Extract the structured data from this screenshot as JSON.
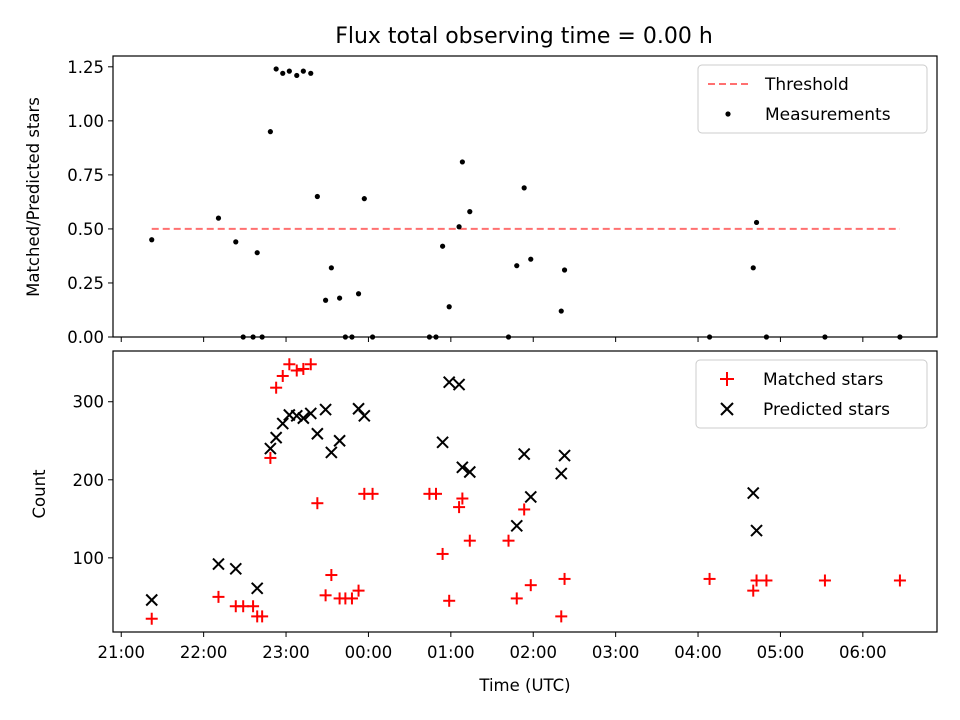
{
  "title": "Flux total observing time = 0.00 h",
  "colors": {
    "threshold": "#ff7070",
    "matched": "#ff0000",
    "predicted": "#000000",
    "measure": "#000000"
  },
  "chart_data": [
    {
      "type": "scatter",
      "panel": "top",
      "ylabel": "Matched/Predicted stars",
      "xlim_hours": [
        20.9,
        30.9
      ],
      "ylim": [
        0,
        1.3
      ],
      "yticks": [
        0,
        0.25,
        0.5,
        0.75,
        1.0,
        1.25
      ],
      "ytick_labels": [
        "0.00",
        "0.25",
        "0.50",
        "0.75",
        "1.00",
        "1.25"
      ],
      "legend": [
        "Threshold",
        "Measurements"
      ],
      "threshold": {
        "x": [
          21.37,
          30.45
        ],
        "y": 0.5
      },
      "measurements": {
        "x": [
          21.37,
          22.18,
          22.39,
          22.48,
          22.6,
          22.65,
          22.71,
          22.81,
          22.88,
          22.96,
          23.04,
          23.13,
          23.21,
          23.3,
          23.38,
          23.48,
          23.55,
          23.65,
          23.72,
          23.8,
          23.88,
          23.95,
          24.05,
          24.74,
          24.82,
          24.9,
          24.98,
          25.1,
          25.14,
          25.23,
          25.7,
          25.8,
          25.89,
          25.97,
          26.34,
          26.38,
          28.14,
          28.67,
          28.71,
          28.83,
          29.54,
          30.45
        ],
        "y": [
          0.45,
          0.55,
          0.44,
          0.0,
          0.0,
          0.39,
          0.0,
          0.95,
          1.24,
          1.22,
          1.23,
          1.21,
          1.23,
          1.22,
          0.65,
          0.17,
          0.32,
          0.18,
          0.0,
          0.0,
          0.2,
          0.64,
          0.0,
          0.0,
          0.0,
          0.42,
          0.14,
          0.51,
          0.81,
          0.58,
          0.0,
          0.33,
          0.69,
          0.36,
          0.12,
          0.31,
          0.0,
          0.32,
          0.53,
          0.0,
          0.0,
          0.0
        ]
      }
    },
    {
      "type": "scatter",
      "panel": "bottom",
      "xlabel": "Time (UTC)",
      "ylabel": "Count",
      "xlim_hours": [
        20.9,
        30.9
      ],
      "ylim": [
        5,
        365
      ],
      "yticks": [
        100,
        200,
        300
      ],
      "ytick_labels": [
        "100",
        "200",
        "300"
      ],
      "xticks_hours": [
        21,
        22,
        23,
        24,
        25,
        26,
        27,
        28,
        29,
        30
      ],
      "xtick_labels": [
        "21:00",
        "22:00",
        "23:00",
        "00:00",
        "01:00",
        "02:00",
        "03:00",
        "04:00",
        "05:00",
        "06:00"
      ],
      "legend": [
        "Matched stars",
        "Predicted stars"
      ],
      "series": [
        {
          "name": "Matched stars",
          "x": [
            21.37,
            22.18,
            22.39,
            22.48,
            22.6,
            22.65,
            22.71,
            22.81,
            22.88,
            22.96,
            23.04,
            23.13,
            23.21,
            23.3,
            23.38,
            23.48,
            23.55,
            23.65,
            23.72,
            23.8,
            23.88,
            23.95,
            24.05,
            24.74,
            24.82,
            24.9,
            24.98,
            25.1,
            25.14,
            25.23,
            25.7,
            25.8,
            25.89,
            25.97,
            26.34,
            26.38,
            28.14,
            28.67,
            28.71,
            28.83,
            29.54,
            30.45
          ],
          "y": [
            22,
            50,
            38,
            38,
            38,
            25,
            25,
            228,
            318,
            333,
            348,
            340,
            342,
            348,
            170,
            52,
            78,
            48,
            48,
            48,
            58,
            182,
            182,
            182,
            182,
            105,
            45,
            165,
            176,
            122,
            122,
            48,
            162,
            65,
            25,
            73,
            73,
            58,
            71,
            71,
            71,
            71
          ]
        },
        {
          "name": "Predicted stars",
          "x": [
            21.37,
            22.18,
            22.39,
            22.65,
            22.81,
            22.88,
            22.96,
            23.04,
            23.13,
            23.21,
            23.3,
            23.38,
            23.48,
            23.55,
            23.65,
            23.88,
            23.95,
            24.9,
            24.98,
            25.1,
            25.14,
            25.23,
            25.8,
            25.89,
            25.97,
            26.34,
            26.38,
            28.67,
            28.71
          ],
          "y": [
            46,
            92,
            86,
            61,
            240,
            254,
            272,
            283,
            282,
            279,
            285,
            259,
            290,
            235,
            250,
            291,
            282,
            248,
            325,
            322,
            216,
            210,
            141,
            233,
            178,
            208,
            231,
            183,
            135
          ]
        }
      ]
    }
  ]
}
